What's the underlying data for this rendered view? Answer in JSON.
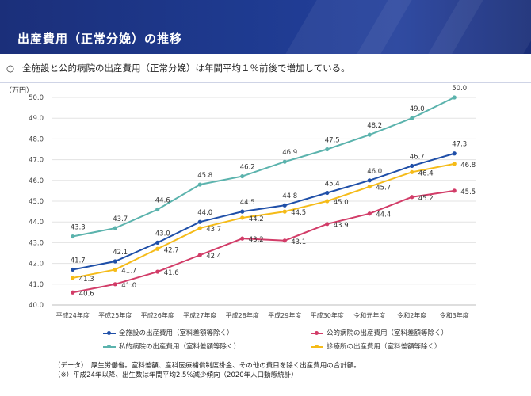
{
  "header": {
    "title": "出産費用（正常分娩）の推移"
  },
  "summary": {
    "bullet": "○",
    "text": "全施設と公的病院の出産費用（正常分娩）は年間平均１％前後で増加している。"
  },
  "chart_data": {
    "type": "line",
    "ylabel": "（万円）",
    "ylim": [
      40.0,
      50.0
    ],
    "yticks": [
      "40.0",
      "41.0",
      "42.0",
      "43.0",
      "44.0",
      "45.0",
      "46.0",
      "47.0",
      "48.0",
      "49.0",
      "50.0"
    ],
    "categories": [
      "平成24年度",
      "平成25年度",
      "平成26年度",
      "平成27年度",
      "平成28年度",
      "平成29年度",
      "平成30年度",
      "令和元年度",
      "令和2年度",
      "令和3年度"
    ],
    "grid": true,
    "legend_position": "bottom",
    "series": [
      {
        "name": "全施設の出産費用（室料差額等除く）",
        "color": "#1f4fa8",
        "values": [
          41.7,
          42.1,
          43.0,
          44.0,
          44.5,
          44.8,
          45.4,
          46.0,
          46.7,
          47.3
        ]
      },
      {
        "name": "公的病院の出産費用（室料差額等除く）",
        "color": "#d23c68",
        "values": [
          40.6,
          41.0,
          41.6,
          42.4,
          43.2,
          43.1,
          43.9,
          44.4,
          45.2,
          45.5
        ]
      },
      {
        "name": "私的病院の出産費用（室料差額等除く）",
        "color": "#5bb3ad",
        "values": [
          43.3,
          43.7,
          44.6,
          45.8,
          46.2,
          46.9,
          47.5,
          48.2,
          49.0,
          50.0
        ]
      },
      {
        "name": "診療所の出産費用（室料差額等除く）",
        "color": "#f5bb18",
        "values": [
          41.3,
          41.7,
          42.7,
          43.7,
          44.2,
          44.5,
          45.0,
          45.7,
          46.4,
          46.8
        ]
      }
    ]
  },
  "notes": [
    "（データ）　厚生労働省。室料差額、産科医療補償制度掛金、その他の費目を除く出産費用の合計額。",
    "（※）平成24年以降、出生数は年間平均2.5%減少傾向（2020年人口動態統計）"
  ]
}
